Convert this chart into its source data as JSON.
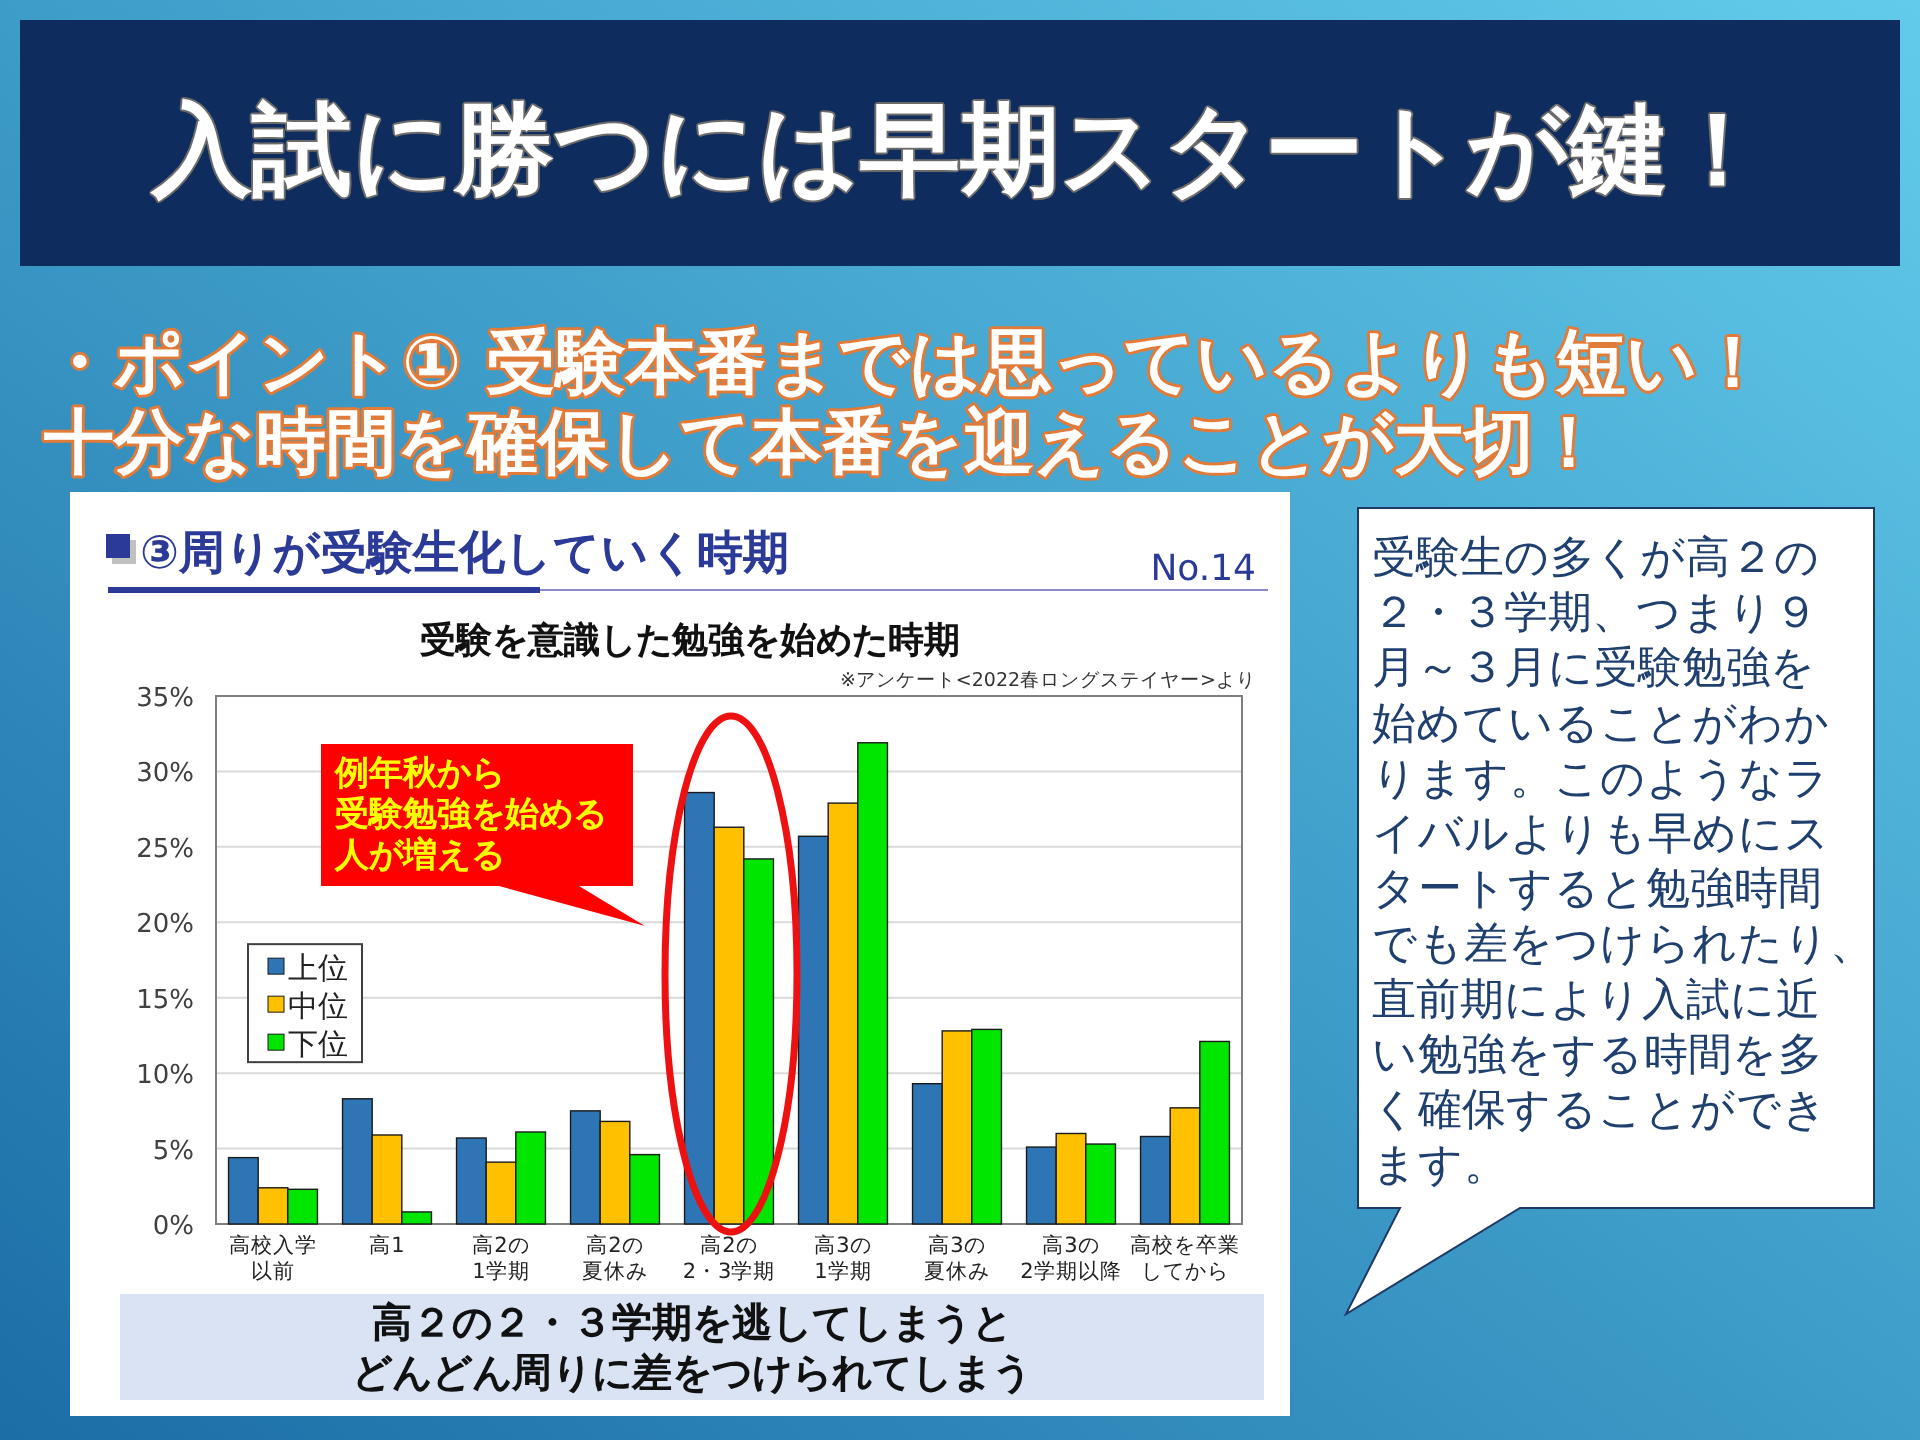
{
  "chart_data": {
    "type": "bar",
    "title": "受験を意識した勉強を始めた時期",
    "categories": [
      "高校入学以前",
      "高1",
      "高2の1学期",
      "高2の夏休み",
      "高2の2・3学期",
      "高3の1学期",
      "高3の夏休み",
      "高3の2学期以降",
      "高校を卒業してから"
    ],
    "series": [
      {
        "name": "上位",
        "color": "#2e75b6",
        "values": [
          4.4,
          8.3,
          5.7,
          7.5,
          28.6,
          25.7,
          9.3,
          5.1,
          5.8
        ]
      },
      {
        "name": "中位",
        "color": "#ffc000",
        "values": [
          2.4,
          5.9,
          4.1,
          6.8,
          26.3,
          27.9,
          12.8,
          6.0,
          7.7
        ]
      },
      {
        "name": "下位",
        "color": "#00e600",
        "values": [
          2.3,
          0.8,
          6.1,
          4.6,
          24.2,
          31.9,
          12.9,
          5.3,
          12.1
        ]
      }
    ],
    "ylim": [
      0,
      35
    ],
    "yticks": [
      {
        "value": 0,
        "label": "0%"
      },
      {
        "value": 5,
        "label": "5%"
      },
      {
        "value": 10,
        "label": "10%"
      },
      {
        "value": 15,
        "label": "15%"
      },
      {
        "value": 20,
        "label": "20%"
      },
      {
        "value": 25,
        "label": "25%"
      },
      {
        "value": 30,
        "label": "30%"
      },
      {
        "value": 35,
        "label": "35%"
      }
    ],
    "grid": "y",
    "legend": "left",
    "annotations": [
      "入試に勝つには早期スタートが鍵！",
      "・ポイント① 受験本番までは思っているよりも短い！十分な時間を確保して本番を迎えることが大切！",
      "③周りが受験生化していく時期",
      "No.14",
      "※アンケート<2022春ロングステイヤー>より",
      "例年秋から受験勉強を始める人が増える",
      "高２の２・３学期を逃してしまうとどんどん周りに差をつけられてしまう",
      "受験生の多くが高２の２・３学期、つまり９月～３月に受験勉強を始めていることがわかります。このようなライバルよりも早めにスタートすると勉強時間でも差をつけられたり、直前期により入試に近い勉強をする時間を多く確保することができます。"
    ]
  }
}
